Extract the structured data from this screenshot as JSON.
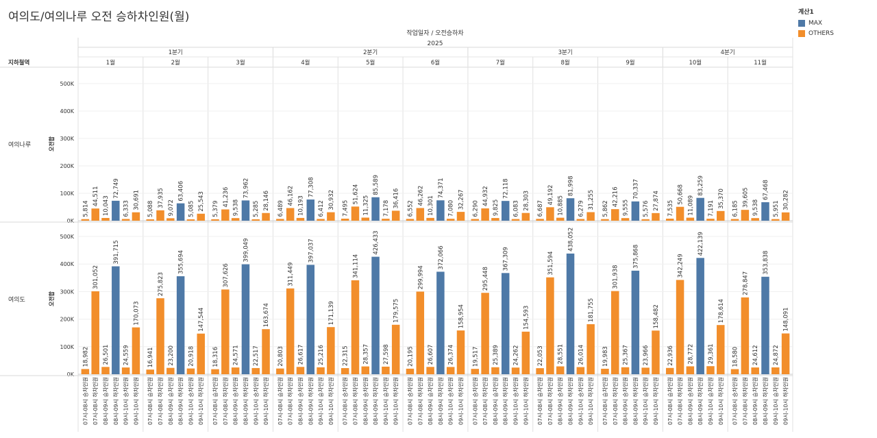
{
  "title": "여의도/여의나루 오전 승하차인원(월)",
  "legend": {
    "title": "계산1",
    "items": [
      {
        "name": "MAX",
        "color": "#4e79a7"
      },
      {
        "name": "OTHERS",
        "color": "#f28e2b"
      }
    ]
  },
  "header": {
    "col_title": "작업일자 / 오전승하차",
    "year": "2025",
    "row_header": "지하철역",
    "quarters": [
      {
        "label": "1분기",
        "months": 3
      },
      {
        "label": "2분기",
        "months": 3
      },
      {
        "label": "3분기",
        "months": 3
      },
      {
        "label": "4분기",
        "months": 2
      }
    ],
    "months": [
      "1월",
      "2월",
      "3월",
      "4월",
      "5월",
      "6월",
      "7월",
      "8월",
      "9월",
      "10월",
      "11월"
    ]
  },
  "chart_data": {
    "type": "bar",
    "categories": [
      "07시-08시 승차인원",
      "07시-08시 하차인원",
      "08시-09시 승차인원",
      "08시-09시 하차인원",
      "09시-10시 승차인원",
      "09시-10시 하차인원"
    ],
    "yaxis_label": "오전합",
    "yticks": [
      "0K",
      "100K",
      "200K",
      "300K",
      "400K",
      "500K"
    ],
    "ylim": [
      0,
      550000
    ],
    "rows": [
      {
        "station": "여의나루",
        "months": [
          {
            "values": [
              5814,
              44511,
              10043,
              72749,
              6333,
              30691
            ],
            "labels": [
              "5,814",
              "44,511",
              "10,043",
              "72,749",
              "6,333",
              "30,691"
            ]
          },
          {
            "values": [
              5088,
              37935,
              9072,
              63406,
              5085,
              25543
            ],
            "labels": [
              "5,088",
              "37,935",
              "9,072",
              "63,406",
              "5,085",
              "25,543"
            ]
          },
          {
            "values": [
              5379,
              41236,
              9538,
              73962,
              5285,
              28146
            ],
            "labels": [
              "5,379",
              "41,236",
              "9,538",
              "73,962",
              "5,285",
              "28,146"
            ]
          },
          {
            "values": [
              6489,
              46162,
              10193,
              77308,
              6412,
              30932
            ],
            "labels": [
              "6,489",
              "46,162",
              "10,193",
              "77,308",
              "6,412",
              "30,932"
            ]
          },
          {
            "values": [
              7495,
              51624,
              11325,
              85589,
              7178,
              36416
            ],
            "labels": [
              "7,495",
              "51,624",
              "11,325",
              "85,589",
              "7,178",
              "36,416"
            ]
          },
          {
            "values": [
              6552,
              46262,
              10301,
              74371,
              7080,
              32267
            ],
            "labels": [
              "6,552",
              "46,262",
              "10,301",
              "74,371",
              "7,080",
              "32,267"
            ]
          },
          {
            "values": [
              6290,
              44932,
              9825,
              72118,
              6083,
              28303
            ],
            "labels": [
              "6,290",
              "44,932",
              "9,825",
              "72,118",
              "6,083",
              "28,303"
            ]
          },
          {
            "values": [
              6687,
              49192,
              10885,
              81998,
              6279,
              31255
            ],
            "labels": [
              "6,687",
              "49,192",
              "10,885",
              "81,998",
              "6,279",
              "31,255"
            ]
          },
          {
            "values": [
              5862,
              42216,
              9555,
              70337,
              5576,
              27874
            ],
            "labels": [
              "5,862",
              "42,216",
              "9,555",
              "70,337",
              "5,576",
              "27,874"
            ]
          },
          {
            "values": [
              7535,
              50668,
              11089,
              83259,
              7191,
              35370
            ],
            "labels": [
              "7,535",
              "50,668",
              "11,089",
              "83,259",
              "7,191",
              "35,370"
            ]
          },
          {
            "values": [
              6185,
              39605,
              9538,
              67468,
              5951,
              30282
            ],
            "labels": [
              "6,185",
              "39,605",
              "9,538",
              "67,468",
              "5,951",
              "30,282"
            ]
          }
        ]
      },
      {
        "station": "여의도",
        "months": [
          {
            "values": [
              18982,
              301052,
              26501,
              391715,
              24559,
              170073
            ],
            "labels": [
              "18,982",
              "301,052",
              "26,501",
              "391,715",
              "24,559",
              "170,073"
            ]
          },
          {
            "values": [
              16941,
              275823,
              23200,
              355694,
              20918,
              147544
            ],
            "labels": [
              "16,941",
              "275,823",
              "23,200",
              "355,694",
              "20,918",
              "147,544"
            ]
          },
          {
            "values": [
              18316,
              307626,
              24571,
              399049,
              22517,
              163674
            ],
            "labels": [
              "18,316",
              "307,626",
              "24,571",
              "399,049",
              "22,517",
              "163,674"
            ]
          },
          {
            "values": [
              20803,
              311449,
              26617,
              397037,
              25216,
              171139
            ],
            "labels": [
              "20,803",
              "311,449",
              "26,617",
              "397,037",
              "25,216",
              "171,139"
            ]
          },
          {
            "values": [
              22315,
              341114,
              28357,
              426433,
              27598,
              179575
            ],
            "labels": [
              "22,315",
              "341,114",
              "28,357",
              "426,433",
              "27,598",
              "179,575"
            ]
          },
          {
            "values": [
              20195,
              299994,
              26607,
              372066,
              26374,
              158954
            ],
            "labels": [
              "20,195",
              "299,994",
              "26,607",
              "372,066",
              "26,374",
              "158,954"
            ]
          },
          {
            "values": [
              19517,
              295448,
              25389,
              367309,
              24262,
              154593
            ],
            "labels": [
              "19,517",
              "295,448",
              "25,389",
              "367,309",
              "24,262",
              "154,593"
            ]
          },
          {
            "values": [
              22053,
              351594,
              28551,
              438052,
              26014,
              181755
            ],
            "labels": [
              "22,053",
              "351,594",
              "28,551",
              "438,052",
              "26,014",
              "181,755"
            ]
          },
          {
            "values": [
              19983,
              301938,
              25367,
              375868,
              23966,
              158482
            ],
            "labels": [
              "19,983",
              "301,938",
              "25,367",
              "375,868",
              "23,966",
              "158,482"
            ]
          },
          {
            "values": [
              22936,
              342249,
              28772,
              422139,
              29361,
              178614
            ],
            "labels": [
              "22,936",
              "342,249",
              "28,772",
              "422,139",
              "29,361",
              "178,614"
            ]
          },
          {
            "values": [
              18580,
              278847,
              24612,
              353838,
              24872,
              148091
            ],
            "labels": [
              "18,580",
              "278,847",
              "24,612",
              "353,838",
              "24,872",
              "148,091"
            ]
          }
        ]
      }
    ]
  }
}
